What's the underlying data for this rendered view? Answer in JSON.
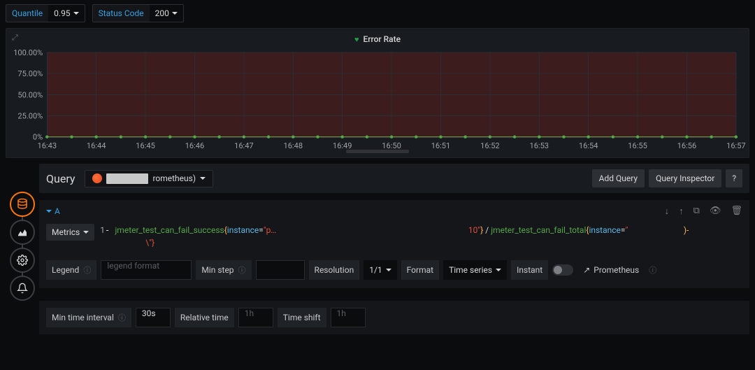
{
  "filters": {
    "quantile": {
      "label": "Quantile",
      "value": "0.95"
    },
    "status_code": {
      "label": "Status Code",
      "value": "200"
    }
  },
  "chart": {
    "type": "line",
    "title": "Error Rate",
    "y_ticks": [
      "100.00%",
      "75.00%",
      "50.00%",
      "25.00%",
      "0%"
    ],
    "x_ticks": [
      "16:43",
      "16:44",
      "16:45",
      "16:46",
      "16:47",
      "16:48",
      "16:49",
      "16:50",
      "16:51",
      "16:52",
      "16:53",
      "16:54",
      "16:55",
      "16:56",
      "16:57"
    ],
    "ylim": [
      0,
      100
    ],
    "series_value": 0,
    "background_color": "#181b1f",
    "grid_color": "#2a2d31",
    "fill_color": "#611e1e",
    "line_color_red": "#e24d42",
    "line_color_green": "#56a64b",
    "dot_color": "#56a64b",
    "label_color": "#9fa2a7"
  },
  "editor": {
    "query_title": "Query",
    "datasource_suffix": "rometheus)",
    "buttons": {
      "add_query": "Add Query",
      "inspector": "Query Inspector",
      "help": "?"
    },
    "row_label": "A",
    "metrics_btn": "Metrics",
    "code": {
      "line_num": "1",
      "prefix": "- ",
      "metric1": "jmeter_test_can_fail_success",
      "kv_key": "instance",
      "kv_eq": "=",
      "kv_val1": "\"p…",
      "mid_frag": "10\"",
      "divider": " / ",
      "metric2": "jmeter_test_can_fail_total",
      "kv_val2": "\"",
      "tail": ")-",
      "line2_frag": "\\\"}"
    },
    "opts": {
      "legend_label": "Legend",
      "legend_placeholder": "legend format",
      "minstep_label": "Min step",
      "resolution_label": "Resolution",
      "resolution_value": "1/1",
      "format_label": "Format",
      "format_value": "Time series",
      "instant_label": "Instant",
      "prom_link": "Prometheus"
    },
    "time": {
      "min_interval_label": "Min time interval",
      "min_interval_value": "30s",
      "relative_label": "Relative time",
      "relative_placeholder": "1h",
      "shift_label": "Time shift",
      "shift_placeholder": "1h"
    }
  }
}
